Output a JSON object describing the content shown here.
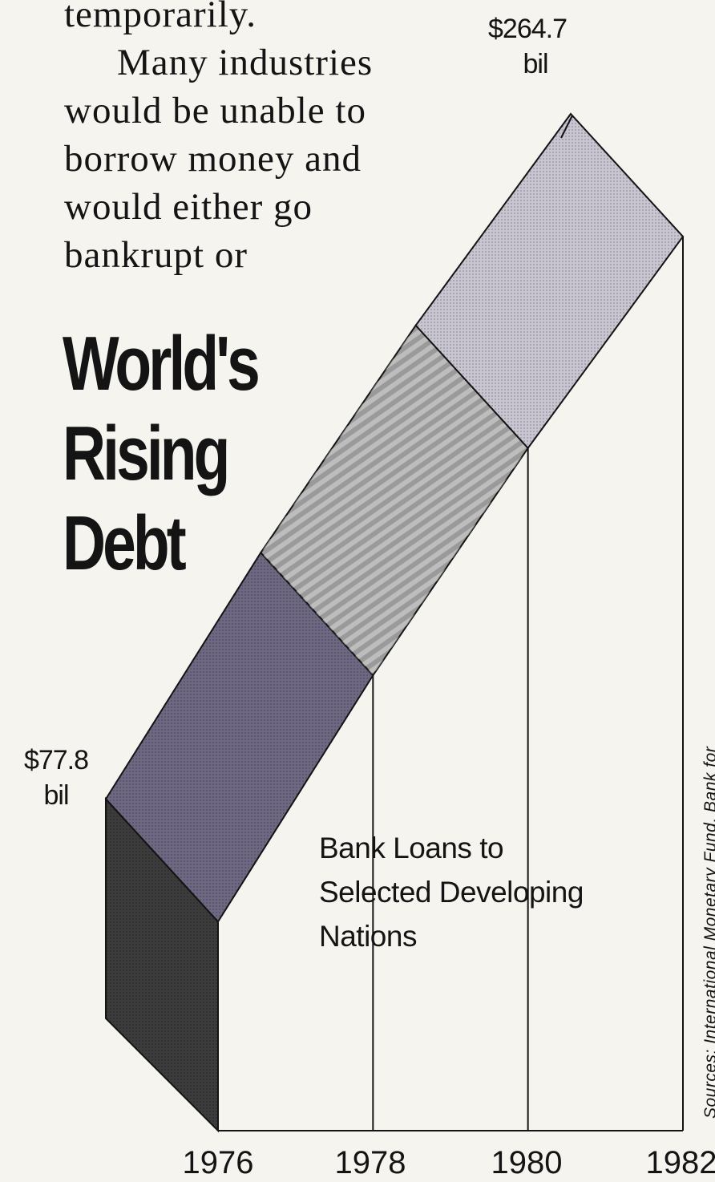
{
  "article_text": {
    "lines": [
      "temporarily.",
      "Many industries",
      "would be unable to",
      "borrow money and",
      "would either go",
      "bankrupt or"
    ]
  },
  "headline": {
    "lines": [
      "World's",
      "Rising",
      "Debt"
    ]
  },
  "chart_data": {
    "type": "area",
    "title": "World's Rising Debt",
    "series": [
      {
        "name": "Bank Loans to Selected Developing Nations",
        "x": [
          1976,
          1978,
          1980,
          1982
        ],
        "values": [
          77.8,
          145,
          207,
          264.7
        ]
      }
    ],
    "series_label_lines": [
      "Bank Loans to",
      "Selected Developing",
      "Nations"
    ],
    "categories": [
      "1976",
      "1978",
      "1980",
      "1982"
    ],
    "data_labels": [
      {
        "year": 1976,
        "line1": "$77.8",
        "line2": "bil"
      },
      {
        "year": 1982,
        "line1": "$264.7",
        "line2": "bil"
      }
    ],
    "unit": "bil",
    "source": "Sources: International Monetary Fund, Bank for",
    "colors": {
      "front_face": "#2a2a2a",
      "side_face": "#3c3c3c",
      "segment_fills": [
        "#6f6883",
        "#9a9a9a",
        "#c9c6d2"
      ],
      "ink": "#141414"
    }
  }
}
